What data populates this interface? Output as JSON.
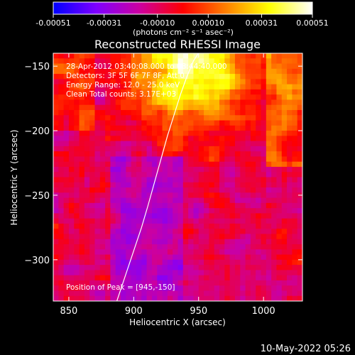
{
  "chart_data": {
    "type": "heatmap",
    "title": "Reconstructed RHESSI Image",
    "xlabel": "Heliocentric X (arcsec)",
    "ylabel": "Heliocentric Y (arcsec)",
    "xlim": [
      838,
      1030
    ],
    "ylim": [
      -332,
      -140
    ],
    "xticks": [
      850,
      900,
      950,
      1000
    ],
    "yticks": [
      -150,
      -200,
      -250,
      -300
    ],
    "colorbar": {
      "min": -0.00051,
      "max": 0.00051,
      "tick_values": [
        -0.00051,
        -0.00031,
        -0.0001,
        0.0001,
        0.00031,
        0.00051
      ],
      "tick_labels": [
        "-0.00051",
        "-0.00031",
        "-0.00010",
        "0.00010",
        "0.00031",
        "0.00051"
      ],
      "units_label": "(photons cm⁻² s⁻¹ asec⁻²)",
      "colors": [
        "#0000ff",
        "#7f00ff",
        "#cc00a0",
        "#ff0000",
        "#ff8000",
        "#ffff00",
        "#ffffff"
      ]
    },
    "annotations": {
      "time_range": "28-Apr-2012 03:40:08.000 to 03:44:40.000",
      "detectors": "Detectors: 3F 5F 6F 7F 8F, Att 0",
      "energy_range": "Energy Range: 12.0 - 25.0 keV",
      "method": "Clean    Total counts: 3.17E+03",
      "peak": "Position of Peak = [945,-150]"
    },
    "peak_position": [
      945,
      -150
    ],
    "limb_curve": {
      "x": [
        887,
        891,
        896,
        901,
        906,
        911,
        916,
        921,
        926,
        931,
        936,
        941,
        946,
        951
      ],
      "y": [
        -332,
        -320,
        -305,
        -290,
        -275,
        -258,
        -240,
        -222,
        -204,
        -188,
        -172,
        -158,
        -146,
        -138
      ]
    }
  },
  "footer": {
    "timestamp": "10-May-2022 05:26"
  }
}
